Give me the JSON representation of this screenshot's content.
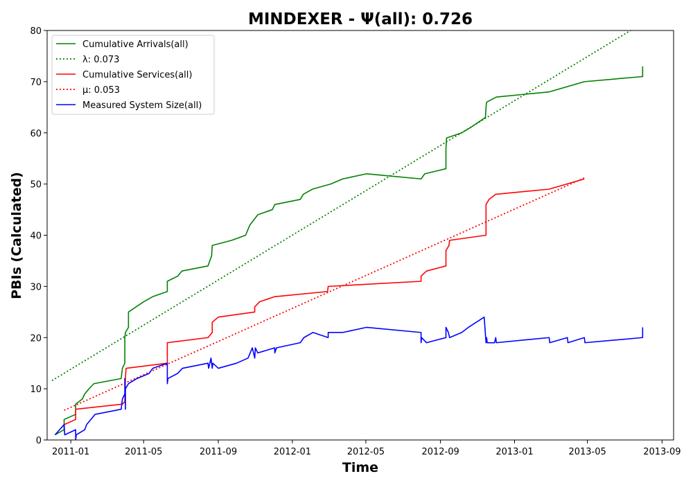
{
  "chart_data": {
    "type": "line",
    "title": "MINDEXER -  Ψ(all): 0.726",
    "xlabel": "Time",
    "ylabel": "PBIs (Calculated)",
    "xlim": [
      "2010-11-23",
      "2013-09-20"
    ],
    "ylim": [
      0,
      80
    ],
    "x_ticks": [
      "2011-01",
      "2011-05",
      "2011-09",
      "2012-01",
      "2012-05",
      "2012-09",
      "2013-01",
      "2013-05",
      "2013-09"
    ],
    "y_ticks": [
      0,
      10,
      20,
      30,
      40,
      50,
      60,
      70,
      80
    ],
    "grid": false,
    "legend_position": "top-left",
    "series": [
      {
        "name": "Cumulative Arrivals(all)",
        "color": "#008000",
        "style": "solid",
        "points": [
          [
            "2010-12-06",
            1
          ],
          [
            "2010-12-21",
            2
          ],
          [
            "2010-12-21",
            4
          ],
          [
            "2011-01-09",
            5
          ],
          [
            "2011-01-09",
            7
          ],
          [
            "2011-01-20",
            8
          ],
          [
            "2011-01-24",
            9
          ],
          [
            "2011-01-31",
            10
          ],
          [
            "2011-02-08",
            11
          ],
          [
            "2011-03-25",
            12
          ],
          [
            "2011-03-27",
            14
          ],
          [
            "2011-03-31",
            15
          ],
          [
            "2011-03-31",
            20
          ],
          [
            "2011-04-01",
            21
          ],
          [
            "2011-04-06",
            22
          ],
          [
            "2011-04-06",
            25
          ],
          [
            "2011-05-01",
            27
          ],
          [
            "2011-05-16",
            28
          ],
          [
            "2011-06-09",
            29
          ],
          [
            "2011-06-09",
            31
          ],
          [
            "2011-06-26",
            32
          ],
          [
            "2011-07-03",
            33
          ],
          [
            "2011-08-15",
            34
          ],
          [
            "2011-08-21",
            36
          ],
          [
            "2011-08-22",
            38
          ],
          [
            "2011-09-23",
            39
          ],
          [
            "2011-10-16",
            40
          ],
          [
            "2011-10-23",
            42
          ],
          [
            "2011-11-05",
            44
          ],
          [
            "2011-11-29",
            45
          ],
          [
            "2011-12-03",
            46
          ],
          [
            "2012-01-14",
            47
          ],
          [
            "2012-01-19",
            48
          ],
          [
            "2012-02-03",
            49
          ],
          [
            "2012-03-04",
            50
          ],
          [
            "2012-03-24",
            51
          ],
          [
            "2012-05-02",
            52
          ],
          [
            "2012-07-31",
            51
          ],
          [
            "2012-08-06",
            52
          ],
          [
            "2012-09-10",
            53
          ],
          [
            "2012-09-10",
            57
          ],
          [
            "2012-09-11",
            59
          ],
          [
            "2012-10-06",
            60
          ],
          [
            "2012-10-20",
            61
          ],
          [
            "2012-11-14",
            63
          ],
          [
            "2012-11-15",
            65
          ],
          [
            "2012-11-16",
            66
          ],
          [
            "2012-12-02",
            67
          ],
          [
            "2013-02-27",
            68
          ],
          [
            "2013-04-26",
            70
          ],
          [
            "2013-07-31",
            71
          ],
          [
            "2013-07-31",
            73
          ]
        ]
      },
      {
        "name": "λ: 0.073",
        "color": "#008000",
        "style": "dotted",
        "points": [
          [
            "2010-12-01",
            11.6
          ],
          [
            "2013-08-01",
            81.5
          ]
        ]
      },
      {
        "name": "Cumulative Services(all)",
        "color": "#ff0000",
        "style": "solid",
        "points": [
          [
            "2010-12-21",
            2
          ],
          [
            "2010-12-21",
            3
          ],
          [
            "2011-01-09",
            4
          ],
          [
            "2011-01-09",
            6
          ],
          [
            "2011-03-27",
            7
          ],
          [
            "2011-03-31",
            7.5
          ],
          [
            "2011-04-01",
            12
          ],
          [
            "2011-04-02",
            14
          ],
          [
            "2011-06-09",
            15
          ],
          [
            "2011-06-09",
            19
          ],
          [
            "2011-08-15",
            20
          ],
          [
            "2011-08-22",
            21
          ],
          [
            "2011-08-22",
            23
          ],
          [
            "2011-09-01",
            24
          ],
          [
            "2011-10-31",
            25
          ],
          [
            "2011-10-31",
            26
          ],
          [
            "2011-11-08",
            27
          ],
          [
            "2011-12-03",
            28
          ],
          [
            "2012-02-28",
            29
          ],
          [
            "2012-02-29",
            30
          ],
          [
            "2012-07-31",
            31
          ],
          [
            "2012-07-31",
            32
          ],
          [
            "2012-08-09",
            33
          ],
          [
            "2012-09-10",
            34
          ],
          [
            "2012-09-10",
            37
          ],
          [
            "2012-09-15",
            38
          ],
          [
            "2012-09-16",
            39
          ],
          [
            "2012-11-15",
            40
          ],
          [
            "2012-11-15",
            46
          ],
          [
            "2012-11-20",
            47
          ],
          [
            "2012-12-01",
            48
          ],
          [
            "2013-02-27",
            49
          ],
          [
            "2013-04-26",
            51
          ]
        ]
      },
      {
        "name": "μ: 0.053",
        "color": "#ff0000",
        "style": "dotted",
        "points": [
          [
            "2010-12-21",
            5.8
          ],
          [
            "2013-04-28",
            51.3
          ]
        ]
      },
      {
        "name": "Measured System Size(all)",
        "color": "#0000ff",
        "style": "solid",
        "points": [
          [
            "2010-12-06",
            1
          ],
          [
            "2010-12-21",
            3
          ],
          [
            "2010-12-22",
            1
          ],
          [
            "2011-01-09",
            2
          ],
          [
            "2011-01-09",
            0
          ],
          [
            "2011-01-10",
            1
          ],
          [
            "2011-01-24",
            2
          ],
          [
            "2011-01-27",
            3
          ],
          [
            "2011-02-03",
            4
          ],
          [
            "2011-02-10",
            5
          ],
          [
            "2011-03-25",
            6
          ],
          [
            "2011-03-27",
            8
          ],
          [
            "2011-03-31",
            9
          ],
          [
            "2011-03-31",
            12
          ],
          [
            "2011-04-01",
            6
          ],
          [
            "2011-04-01",
            10
          ],
          [
            "2011-04-06",
            11
          ],
          [
            "2011-04-20",
            12
          ],
          [
            "2011-05-10",
            13
          ],
          [
            "2011-05-16",
            14
          ],
          [
            "2011-06-09",
            15
          ],
          [
            "2011-06-09",
            11
          ],
          [
            "2011-06-10",
            12
          ],
          [
            "2011-06-26",
            13
          ],
          [
            "2011-07-04",
            14
          ],
          [
            "2011-08-15",
            15
          ],
          [
            "2011-08-16",
            14
          ],
          [
            "2011-08-20",
            16
          ],
          [
            "2011-08-22",
            14
          ],
          [
            "2011-08-23",
            15
          ],
          [
            "2011-09-01",
            14
          ],
          [
            "2011-10-01",
            15
          ],
          [
            "2011-10-20",
            16
          ],
          [
            "2011-10-27",
            18
          ],
          [
            "2011-10-31",
            16
          ],
          [
            "2011-11-01",
            18
          ],
          [
            "2011-11-05",
            17
          ],
          [
            "2011-12-03",
            18
          ],
          [
            "2011-12-03",
            17
          ],
          [
            "2011-12-06",
            18
          ],
          [
            "2012-01-14",
            19
          ],
          [
            "2012-01-20",
            20
          ],
          [
            "2012-02-04",
            21
          ],
          [
            "2012-02-29",
            20
          ],
          [
            "2012-02-29",
            21
          ],
          [
            "2012-03-24",
            21
          ],
          [
            "2012-05-02",
            22
          ],
          [
            "2012-07-31",
            21
          ],
          [
            "2012-07-31",
            19
          ],
          [
            "2012-08-01",
            20
          ],
          [
            "2012-08-09",
            19
          ],
          [
            "2012-09-10",
            20
          ],
          [
            "2012-09-10",
            22
          ],
          [
            "2012-09-14",
            21
          ],
          [
            "2012-09-16",
            20
          ],
          [
            "2012-10-06",
            21
          ],
          [
            "2012-10-17",
            22
          ],
          [
            "2012-11-12",
            24
          ],
          [
            "2012-11-15",
            19
          ],
          [
            "2012-11-16",
            20
          ],
          [
            "2012-11-17",
            19
          ],
          [
            "2012-11-29",
            19
          ],
          [
            "2012-12-01",
            20
          ],
          [
            "2012-12-02",
            19
          ],
          [
            "2013-02-27",
            20
          ],
          [
            "2013-02-28",
            19
          ],
          [
            "2013-03-29",
            20
          ],
          [
            "2013-03-30",
            19
          ],
          [
            "2013-04-26",
            20
          ],
          [
            "2013-04-27",
            19
          ],
          [
            "2013-07-31",
            20
          ],
          [
            "2013-07-31",
            22
          ]
        ]
      }
    ]
  }
}
